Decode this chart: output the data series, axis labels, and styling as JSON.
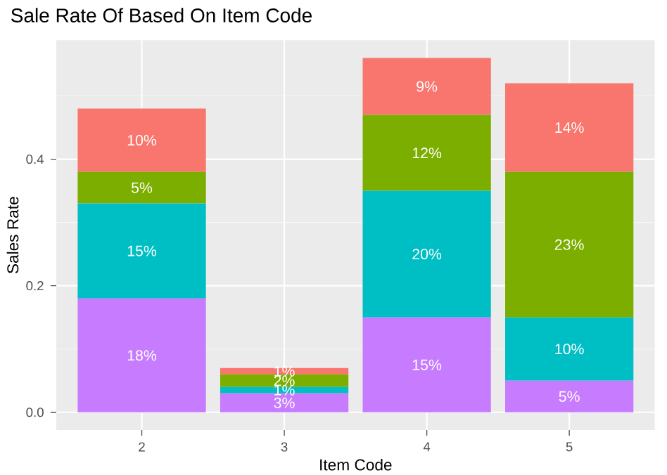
{
  "chart_data": {
    "type": "bar",
    "stacked": true,
    "title": "Sale Rate Of Based On Item Code",
    "xlabel": "Item Code",
    "ylabel": "Sales Rate",
    "categories": [
      "2",
      "3",
      "4",
      "5"
    ],
    "series": [
      {
        "color": "#C77CFF",
        "values": [
          0.18,
          0.03,
          0.15,
          0.05
        ],
        "value_labels": [
          "18%",
          "3%",
          "15%",
          "5%"
        ]
      },
      {
        "color": "#00BFC4",
        "values": [
          0.15,
          0.01,
          0.2,
          0.1
        ],
        "value_labels": [
          "15%",
          "1%",
          "20%",
          "10%"
        ]
      },
      {
        "color": "#7CAE00",
        "values": [
          0.05,
          0.02,
          0.12,
          0.23
        ],
        "value_labels": [
          "5%",
          "2%",
          "12%",
          "23%"
        ]
      },
      {
        "color": "#F8766D",
        "values": [
          0.1,
          0.01,
          0.09,
          0.14
        ],
        "value_labels": [
          "10%",
          "1%",
          "9%",
          "14%"
        ]
      }
    ],
    "ylim": [
      -0.028,
      0.588
    ],
    "yticks": [
      {
        "value": 0,
        "label": "0.0"
      },
      {
        "value": 0.1,
        "label": null
      },
      0.2,
      {
        "value": 0.3,
        "label": null
      },
      0.4,
      {
        "value": 0.5,
        "label": null
      }
    ],
    "grid": true
  }
}
